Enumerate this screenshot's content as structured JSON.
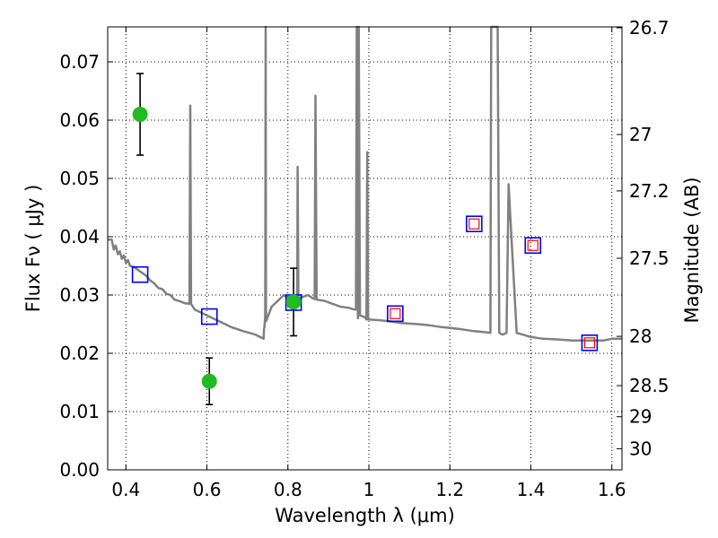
{
  "chart_data": {
    "type": "line",
    "xlabel": "Wavelength  λ (μm)",
    "ylabel": "Flux  Fν  ( μJy )",
    "y2label": "Magnitude (AB)",
    "xlim": [
      0.355,
      1.625
    ],
    "ylim": [
      0.0,
      0.076
    ],
    "grid": true,
    "x_ticks": [
      "0.4",
      "0.6",
      "0.8",
      "1",
      "1.2",
      "1.4",
      "1.6"
    ],
    "x_tick_values": [
      0.4,
      0.6,
      0.8,
      1.0,
      1.2,
      1.4,
      1.6
    ],
    "y_ticks": [
      "0.00",
      "0.01",
      "0.02",
      "0.03",
      "0.04",
      "0.05",
      "0.06",
      "0.07"
    ],
    "y_tick_values": [
      0.0,
      0.01,
      0.02,
      0.03,
      0.04,
      0.05,
      0.06,
      0.07
    ],
    "y2_ticks": [
      "26.7",
      "27",
      "27.2",
      "27.5",
      "28",
      "28.5",
      "29",
      "30"
    ],
    "y2_tick_values": [
      26.7,
      27.0,
      27.2,
      27.5,
      28.0,
      28.5,
      29.0,
      30.0
    ],
    "colors": {
      "model": "#808080",
      "observed": "#22bb22",
      "errorbar": "#000000",
      "model_photometry": "#0000ff",
      "model_inner": "#ff0000"
    },
    "model_spectrum": [
      [
        0.355,
        0.0395
      ],
      [
        0.365,
        0.0395
      ],
      [
        0.37,
        0.0378
      ],
      [
        0.375,
        0.0385
      ],
      [
        0.38,
        0.037
      ],
      [
        0.385,
        0.0375
      ],
      [
        0.39,
        0.0362
      ],
      [
        0.395,
        0.0368
      ],
      [
        0.4,
        0.0355
      ],
      [
        0.405,
        0.036
      ],
      [
        0.41,
        0.035
      ],
      [
        0.42,
        0.0348
      ],
      [
        0.43,
        0.0343
      ],
      [
        0.44,
        0.0338
      ],
      [
        0.45,
        0.0333
      ],
      [
        0.46,
        0.0325
      ],
      [
        0.47,
        0.032
      ],
      [
        0.48,
        0.0312
      ],
      [
        0.49,
        0.031
      ],
      [
        0.5,
        0.0302
      ],
      [
        0.51,
        0.03
      ],
      [
        0.52,
        0.0292
      ],
      [
        0.53,
        0.029
      ],
      [
        0.545,
        0.0286
      ],
      [
        0.556,
        0.0285
      ],
      [
        0.557,
        0.0285
      ],
      [
        0.559,
        0.0625
      ],
      [
        0.561,
        0.0285
      ],
      [
        0.57,
        0.0275
      ],
      [
        0.6,
        0.0265
      ],
      [
        0.63,
        0.0255
      ],
      [
        0.66,
        0.0245
      ],
      [
        0.69,
        0.0238
      ],
      [
        0.72,
        0.0232
      ],
      [
        0.74,
        0.0225
      ],
      [
        0.741,
        0.0243
      ],
      [
        0.742,
        0.0244
      ],
      [
        0.743,
        0.0255
      ],
      [
        0.744,
        0.0262
      ],
      [
        0.745,
        0.076
      ],
      [
        0.746,
        0.0255
      ],
      [
        0.75,
        0.0262
      ],
      [
        0.76,
        0.028
      ],
      [
        0.775,
        0.029
      ],
      [
        0.79,
        0.03
      ],
      [
        0.8,
        0.0295
      ],
      [
        0.81,
        0.0285
      ],
      [
        0.815,
        0.028
      ],
      [
        0.82,
        0.0282
      ],
      [
        0.823,
        0.0285
      ],
      [
        0.824,
        0.052
      ],
      [
        0.826,
        0.0285
      ],
      [
        0.83,
        0.0295
      ],
      [
        0.85,
        0.03
      ],
      [
        0.86,
        0.0295
      ],
      [
        0.866,
        0.0293
      ],
      [
        0.868,
        0.0642
      ],
      [
        0.871,
        0.0292
      ],
      [
        0.89,
        0.029
      ],
      [
        0.91,
        0.0285
      ],
      [
        0.93,
        0.028
      ],
      [
        0.95,
        0.0278
      ],
      [
        0.965,
        0.0275
      ],
      [
        0.968,
        0.0275
      ],
      [
        0.97,
        0.076
      ],
      [
        0.973,
        0.026
      ],
      [
        0.975,
        0.076
      ],
      [
        0.978,
        0.0265
      ],
      [
        0.99,
        0.0262
      ],
      [
        0.994,
        0.0258
      ],
      [
        0.996,
        0.0545
      ],
      [
        0.998,
        0.0258
      ],
      [
        1.02,
        0.0257
      ],
      [
        1.05,
        0.0255
      ],
      [
        1.08,
        0.0252
      ],
      [
        1.12,
        0.025
      ],
      [
        1.15,
        0.0248
      ],
      [
        1.18,
        0.0245
      ],
      [
        1.22,
        0.0242
      ],
      [
        1.26,
        0.0238
      ],
      [
        1.29,
        0.0236
      ],
      [
        1.3,
        0.0235
      ],
      [
        1.302,
        0.076
      ],
      [
        1.318,
        0.076
      ],
      [
        1.322,
        0.0235
      ],
      [
        1.33,
        0.0232
      ],
      [
        1.34,
        0.0235
      ],
      [
        1.345,
        0.049
      ],
      [
        1.352,
        0.04
      ],
      [
        1.36,
        0.03
      ],
      [
        1.365,
        0.0235
      ],
      [
        1.38,
        0.0232
      ],
      [
        1.4,
        0.0228
      ],
      [
        1.43,
        0.0225
      ],
      [
        1.46,
        0.0224
      ],
      [
        1.5,
        0.0222
      ],
      [
        1.54,
        0.0222
      ],
      [
        1.58,
        0.0222
      ],
      [
        1.6,
        0.0225
      ],
      [
        1.625,
        0.0225
      ]
    ],
    "observed_points": [
      {
        "x": 0.435,
        "y": 0.061,
        "yerr": 0.007
      },
      {
        "x": 0.606,
        "y": 0.0152,
        "yerr": 0.004
      },
      {
        "x": 0.814,
        "y": 0.0288,
        "yerr": 0.0058
      }
    ],
    "model_photometry": [
      {
        "x": 0.435,
        "y": 0.0335,
        "inner": false
      },
      {
        "x": 0.606,
        "y": 0.0263,
        "inner": false
      },
      {
        "x": 0.814,
        "y": 0.0287,
        "inner": false
      },
      {
        "x": 1.065,
        "y": 0.0268,
        "inner": true
      },
      {
        "x": 1.26,
        "y": 0.0422,
        "inner": true
      },
      {
        "x": 1.405,
        "y": 0.0385,
        "inner": true
      },
      {
        "x": 1.545,
        "y": 0.0218,
        "inner": true
      }
    ]
  }
}
